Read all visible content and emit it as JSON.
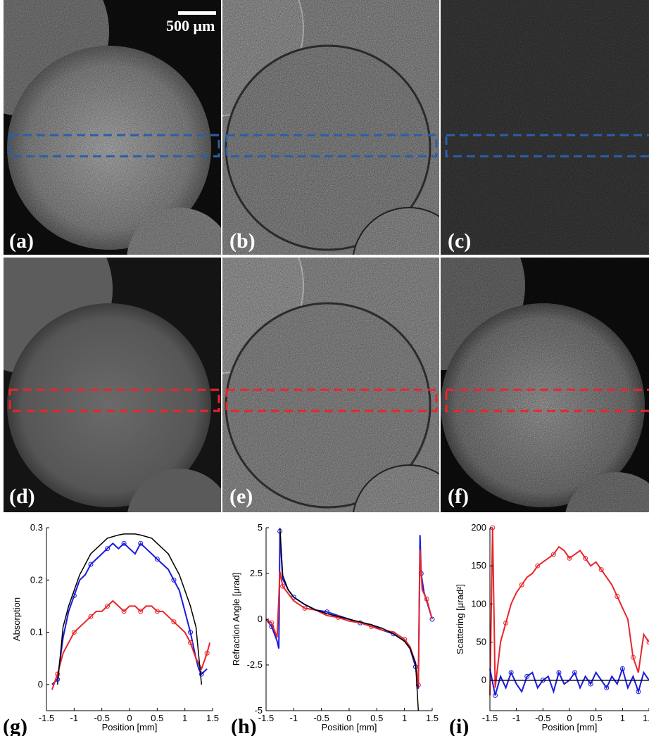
{
  "figure": {
    "scale_bar_label": "500 μm",
    "panels": [
      {
        "id": "a",
        "label": "(a)",
        "kind": "absorption",
        "roi_color": "#2a5fa8"
      },
      {
        "id": "b",
        "label": "(b)",
        "kind": "refraction",
        "roi_color": "#2a5fa8"
      },
      {
        "id": "c",
        "label": "(c)",
        "kind": "scattering",
        "roi_color": "#2a5fa8"
      },
      {
        "id": "d",
        "label": "(d)",
        "kind": "absorption",
        "roi_color": "#e8262b"
      },
      {
        "id": "e",
        "label": "(e)",
        "kind": "refraction",
        "roi_color": "#e8262b"
      },
      {
        "id": "f",
        "label": "(f)",
        "kind": "scattering",
        "roi_color": "#e8262b"
      }
    ],
    "plot_labels": {
      "g": "(g)",
      "h": "(h)",
      "i": "(i)"
    }
  },
  "chart_data": [
    {
      "type": "line",
      "panel": "g",
      "xlabel": "Position [mm]",
      "ylabel": "Absorption",
      "xlim": [
        -1.5,
        1.5
      ],
      "ylim": [
        -0.05,
        0.3
      ],
      "xticks": [
        "-1.5",
        "-1",
        "-0.5",
        "0",
        "0.5",
        "1",
        "1.5"
      ],
      "yticks": [
        "0",
        "0.1",
        "0.2",
        "0.3"
      ],
      "series": [
        {
          "color": "#1a1adf",
          "x": [
            -1.4,
            -1.3,
            -1.2,
            -1.1,
            -1.0,
            -0.9,
            -0.8,
            -0.7,
            -0.6,
            -0.5,
            -0.4,
            -0.3,
            -0.2,
            -0.1,
            0.0,
            0.1,
            0.2,
            0.3,
            0.4,
            0.5,
            0.6,
            0.7,
            0.8,
            0.9,
            1.0,
            1.1,
            1.2,
            1.25,
            1.3,
            1.4
          ],
          "y": [
            0.0,
            0.01,
            0.09,
            0.14,
            0.17,
            0.2,
            0.21,
            0.23,
            0.24,
            0.25,
            0.26,
            0.27,
            0.26,
            0.27,
            0.26,
            0.25,
            0.27,
            0.26,
            0.25,
            0.24,
            0.23,
            0.22,
            0.2,
            0.18,
            0.14,
            0.1,
            0.05,
            0.03,
            0.02,
            0.03
          ]
        },
        {
          "color": "#e8262b",
          "x": [
            -1.4,
            -1.3,
            -1.2,
            -1.1,
            -1.0,
            -0.9,
            -0.8,
            -0.7,
            -0.6,
            -0.5,
            -0.4,
            -0.3,
            -0.2,
            -0.1,
            0.0,
            0.1,
            0.2,
            0.3,
            0.4,
            0.5,
            0.6,
            0.7,
            0.8,
            0.9,
            1.0,
            1.1,
            1.2,
            1.3,
            1.4,
            1.45
          ],
          "y": [
            -0.01,
            0.02,
            0.06,
            0.08,
            0.1,
            0.11,
            0.12,
            0.13,
            0.14,
            0.14,
            0.15,
            0.16,
            0.15,
            0.14,
            0.15,
            0.15,
            0.14,
            0.15,
            0.15,
            0.14,
            0.14,
            0.13,
            0.12,
            0.11,
            0.1,
            0.08,
            0.05,
            0.03,
            0.06,
            0.08
          ]
        },
        {
          "color": "#000000",
          "x": [
            -1.3,
            -1.2,
            -1.1,
            -1.0,
            -0.9,
            -0.8,
            -0.7,
            -0.6,
            -0.5,
            -0.4,
            -0.3,
            -0.2,
            -0.1,
            0.0,
            0.1,
            0.2,
            0.3,
            0.4,
            0.5,
            0.6,
            0.7,
            0.8,
            0.9,
            1.0,
            1.1,
            1.2,
            1.3
          ],
          "y": [
            0.0,
            0.11,
            0.15,
            0.18,
            0.21,
            0.23,
            0.25,
            0.26,
            0.27,
            0.28,
            0.283,
            0.286,
            0.288,
            0.288,
            0.288,
            0.286,
            0.283,
            0.28,
            0.27,
            0.26,
            0.25,
            0.23,
            0.21,
            0.18,
            0.15,
            0.11,
            0.0
          ]
        }
      ]
    },
    {
      "type": "line",
      "panel": "h",
      "xlabel": "Position [mm]",
      "ylabel": "Refraction Angle [μrad]",
      "xlim": [
        -1.5,
        1.5
      ],
      "ylim": [
        -5,
        5
      ],
      "xticks": [
        "-1.5",
        "-1",
        "-0.5",
        "0",
        "0.5",
        "1",
        "1.5"
      ],
      "yticks": [
        "-5",
        "-2.5",
        "0",
        "2.5",
        "5"
      ],
      "series": [
        {
          "color": "#1a1adf",
          "x": [
            -1.5,
            -1.4,
            -1.3,
            -1.27,
            -1.25,
            -1.2,
            -1.1,
            -1.0,
            -0.8,
            -0.6,
            -0.4,
            -0.2,
            0.0,
            0.2,
            0.4,
            0.6,
            0.8,
            1.0,
            1.1,
            1.2,
            1.25,
            1.28,
            1.3,
            1.35,
            1.4,
            1.5
          ],
          "y": [
            0.0,
            -0.4,
            -1.2,
            -1.6,
            4.8,
            2.2,
            1.6,
            1.2,
            0.8,
            0.5,
            0.4,
            0.2,
            0.0,
            -0.2,
            -0.3,
            -0.6,
            -0.8,
            -1.2,
            -1.6,
            -2.6,
            -3.8,
            4.6,
            2.5,
            1.5,
            1.0,
            0.0
          ]
        },
        {
          "color": "#e8262b",
          "x": [
            -1.5,
            -1.4,
            -1.3,
            -1.25,
            -1.2,
            -1.1,
            -1.0,
            -0.8,
            -0.6,
            -0.4,
            -0.2,
            0.0,
            0.2,
            0.4,
            0.6,
            0.8,
            1.0,
            1.1,
            1.2,
            1.25,
            1.28,
            1.32,
            1.4,
            1.5
          ],
          "y": [
            0.0,
            -0.2,
            -1.0,
            2.6,
            1.8,
            1.4,
            1.0,
            0.6,
            0.5,
            0.2,
            0.1,
            -0.1,
            -0.2,
            -0.4,
            -0.6,
            -0.7,
            -1.1,
            -1.5,
            -2.4,
            -3.6,
            3.8,
            1.6,
            1.1,
            0.0
          ]
        },
        {
          "color": "#000000",
          "x": [
            -1.25,
            -1.2,
            -1.1,
            -1.0,
            -0.8,
            -0.6,
            -0.4,
            -0.2,
            0.0,
            0.2,
            0.4,
            0.6,
            0.8,
            1.0,
            1.1,
            1.2,
            1.25
          ],
          "y": [
            5.0,
            2.4,
            1.6,
            1.2,
            0.8,
            0.5,
            0.3,
            0.15,
            0.0,
            -0.15,
            -0.3,
            -0.5,
            -0.8,
            -1.2,
            -1.6,
            -2.4,
            -5.0
          ]
        }
      ]
    },
    {
      "type": "line",
      "panel": "i",
      "xlabel": "Position [mm]",
      "ylabel": "Scattering [μrad²]",
      "xlim": [
        -1.5,
        1.5
      ],
      "ylim": [
        -40,
        200
      ],
      "xticks": [
        "-1.5",
        "-1",
        "-0.5",
        "0",
        "0.5",
        "1",
        "1.5"
      ],
      "yticks": [
        "0",
        "50",
        "100",
        "150",
        "200"
      ],
      "series": [
        {
          "color": "#e8262b",
          "x": [
            -1.5,
            -1.45,
            -1.4,
            -1.3,
            -1.2,
            -1.1,
            -1.0,
            -0.9,
            -0.8,
            -0.7,
            -0.6,
            -0.5,
            -0.4,
            -0.3,
            -0.2,
            -0.1,
            0.0,
            0.1,
            0.2,
            0.3,
            0.4,
            0.5,
            0.6,
            0.7,
            0.8,
            0.9,
            1.0,
            1.1,
            1.2,
            1.3,
            1.4,
            1.5
          ],
          "y": [
            -20,
            200,
            -10,
            50,
            75,
            100,
            115,
            125,
            135,
            140,
            150,
            155,
            160,
            165,
            175,
            170,
            160,
            165,
            170,
            160,
            150,
            155,
            145,
            135,
            125,
            110,
            95,
            80,
            30,
            10,
            60,
            50
          ]
        },
        {
          "color": "#1a1adf",
          "x": [
            -1.5,
            -1.4,
            -1.3,
            -1.2,
            -1.1,
            -1.0,
            -0.9,
            -0.8,
            -0.7,
            -0.6,
            -0.5,
            -0.4,
            -0.3,
            -0.2,
            -0.1,
            0.0,
            0.1,
            0.2,
            0.3,
            0.4,
            0.5,
            0.6,
            0.7,
            0.8,
            0.9,
            1.0,
            1.1,
            1.2,
            1.3,
            1.4,
            1.5
          ],
          "y": [
            15,
            -20,
            5,
            -10,
            10,
            -5,
            -15,
            5,
            10,
            -10,
            0,
            5,
            -15,
            10,
            -5,
            0,
            10,
            -10,
            5,
            -5,
            10,
            0,
            -10,
            5,
            -5,
            15,
            -10,
            5,
            -15,
            10,
            0
          ]
        },
        {
          "color": "#000000",
          "x": [
            -1.5,
            1.5
          ],
          "y": [
            0,
            0
          ]
        }
      ]
    }
  ]
}
